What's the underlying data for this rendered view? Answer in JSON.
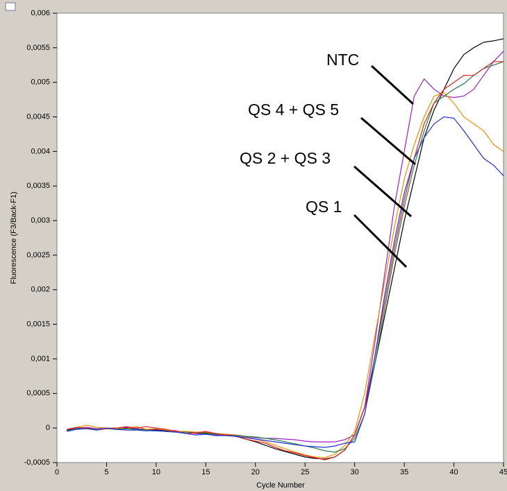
{
  "chart_data": {
    "type": "line",
    "xlabel": "Cycle Number",
    "ylabel": "Fluorescence (F3/Back-F1)",
    "annotations": [
      "NTC",
      "QS 4 + QS 5",
      "QS 2 + QS 3",
      "QS 1"
    ],
    "x": [
      1,
      2,
      3,
      4,
      5,
      6,
      7,
      8,
      9,
      10,
      11,
      12,
      13,
      14,
      15,
      16,
      17,
      18,
      19,
      20,
      21,
      22,
      23,
      24,
      25,
      26,
      27,
      28,
      29,
      30,
      31,
      32,
      33,
      34,
      35,
      36,
      37,
      38,
      39,
      40,
      41,
      42,
      43,
      44,
      45
    ],
    "series": [
      {
        "color": "#000000",
        "values": [
          -3e-05,
          0,
          0,
          -2e-05,
          0,
          -2e-05,
          0,
          -1e-05,
          -2e-05,
          -3e-05,
          -4e-05,
          -5e-05,
          -6e-05,
          -6e-05,
          -7e-05,
          -8e-05,
          -0.0001,
          -0.00012,
          -0.00016,
          -0.0002,
          -0.00025,
          -0.0003,
          -0.00034,
          -0.00038,
          -0.00042,
          -0.00044,
          -0.00045,
          -0.00042,
          -0.00032,
          -0.0001,
          0.0003,
          0.0009,
          0.0016,
          0.0023,
          0.003,
          0.0036,
          0.0042,
          0.0046,
          0.0049,
          0.0052,
          0.0054,
          0.0055,
          0.00558,
          0.0056,
          0.00563
        ]
      },
      {
        "color": "#a020c0",
        "values": [
          -2e-05,
          0,
          1e-05,
          -1e-05,
          0,
          0,
          1e-05,
          -1e-05,
          -2e-05,
          -2e-05,
          -3e-05,
          -4e-05,
          -6e-05,
          -8e-05,
          -9e-05,
          -0.0001,
          -9e-05,
          -0.0001,
          -0.00012,
          -0.00014,
          -0.00015,
          -0.00015,
          -0.00016,
          -0.00017,
          -0.00019,
          -0.0002,
          -0.0002,
          -0.0002,
          -0.00017,
          -0.0001,
          0.0003,
          0.0012,
          0.0022,
          0.0032,
          0.004,
          0.0048,
          0.00505,
          0.0049,
          0.0048,
          0.00478,
          0.0048,
          0.0049,
          0.0051,
          0.0053,
          0.00545
        ]
      },
      {
        "color": "#f08c00",
        "values": [
          -2e-05,
          1e-05,
          4e-05,
          1e-05,
          0,
          0,
          -1e-05,
          2e-05,
          -2e-05,
          -1e-05,
          -3e-05,
          -5e-05,
          -5e-05,
          -6e-05,
          -6e-05,
          -8e-05,
          -9e-05,
          -0.0001,
          -0.00013,
          -0.00016,
          -0.0002,
          -0.00025,
          -0.0003,
          -0.00035,
          -0.00039,
          -0.00042,
          -0.00043,
          -0.00038,
          -0.00025,
          -5e-05,
          0.0005,
          0.0013,
          0.0021,
          0.0029,
          0.0036,
          0.0041,
          0.0045,
          0.0048,
          0.00485,
          0.0047,
          0.0045,
          0.0044,
          0.0043,
          0.0041,
          0.004
        ]
      },
      {
        "color": "#208040",
        "values": [
          -4e-05,
          -1e-05,
          0,
          -2e-05,
          -1e-05,
          -2e-05,
          -1e-05,
          -2e-05,
          -3e-05,
          -4e-05,
          -5e-05,
          -6e-05,
          -6e-05,
          -7e-05,
          -8e-05,
          -9e-05,
          -0.0001,
          -0.00011,
          -0.00012,
          -0.00013,
          -0.00015,
          -0.00017,
          -0.0002,
          -0.00023,
          -0.00026,
          -0.00029,
          -0.00033,
          -0.00035,
          -0.0003,
          -0.00015,
          0.0002,
          0.0009,
          0.0017,
          0.0025,
          0.0032,
          0.0038,
          0.0043,
          0.0047,
          0.0048,
          0.0049,
          0.00498,
          0.0051,
          0.0052,
          0.00525,
          0.0053
        ]
      },
      {
        "color": "#e02020",
        "values": [
          -2e-05,
          1e-05,
          0,
          -3e-05,
          -1e-05,
          0,
          2e-05,
          0,
          2e-05,
          0,
          -2e-05,
          -5e-05,
          -8e-05,
          -7e-05,
          -5e-05,
          -8e-05,
          -0.0001,
          -0.00012,
          -0.00016,
          -0.00019,
          -0.00022,
          -0.00028,
          -0.00033,
          -0.00036,
          -0.0004,
          -0.00043,
          -0.00046,
          -0.00042,
          -0.00032,
          -0.0001,
          0.0003,
          0.001,
          0.0018,
          0.0026,
          0.0033,
          0.0039,
          0.0044,
          0.0047,
          0.0049,
          0.005,
          0.0051,
          0.0051,
          0.0052,
          0.0053,
          0.0053
        ]
      },
      {
        "color": "#2030e0",
        "values": [
          -5e-05,
          -2e-05,
          -1e-05,
          -3e-05,
          0,
          -2e-05,
          -3e-05,
          -3e-05,
          -4e-05,
          -4e-05,
          -5e-05,
          -6e-05,
          -8e-05,
          -0.0001,
          -9e-05,
          -0.00011,
          -0.00011,
          -0.00012,
          -0.00014,
          -0.00016,
          -0.00018,
          -0.0002,
          -0.00022,
          -0.00024,
          -0.00026,
          -0.00027,
          -0.00028,
          -0.00026,
          -0.00022,
          -0.0002,
          0.0002,
          0.001,
          0.0019,
          0.0027,
          0.0034,
          0.0039,
          0.0042,
          0.0044,
          0.0045,
          0.00448,
          0.0043,
          0.0041,
          0.0039,
          0.0038,
          0.00365
        ]
      }
    ],
    "xlim": [
      0,
      45
    ],
    "xticks": [
      0,
      5,
      10,
      15,
      20,
      25,
      30,
      35,
      40,
      45
    ],
    "ylim": [
      -0.0005,
      0.006
    ],
    "yticks": [
      {
        "value": -0.0005,
        "label": "-0,0005"
      },
      0,
      {
        "value": 0.0005,
        "label": "0,0005"
      },
      {
        "value": 0.001,
        "label": "0,001"
      },
      {
        "value": 0.0015,
        "label": "0,0015"
      },
      {
        "value": 0.002,
        "label": "0,002"
      },
      {
        "value": 0.0025,
        "label": "0,0025"
      },
      {
        "value": 0.003,
        "label": "0,003"
      },
      {
        "value": 0.0035,
        "label": "0,0035"
      },
      {
        "value": 0.004,
        "label": "0,004"
      },
      {
        "value": 0.0045,
        "label": "0,0045"
      },
      {
        "value": 0.005,
        "label": "0,005"
      },
      {
        "value": 0.0055,
        "label": "0,0055"
      },
      {
        "value": 0.006,
        "label": "0,006"
      }
    ]
  }
}
